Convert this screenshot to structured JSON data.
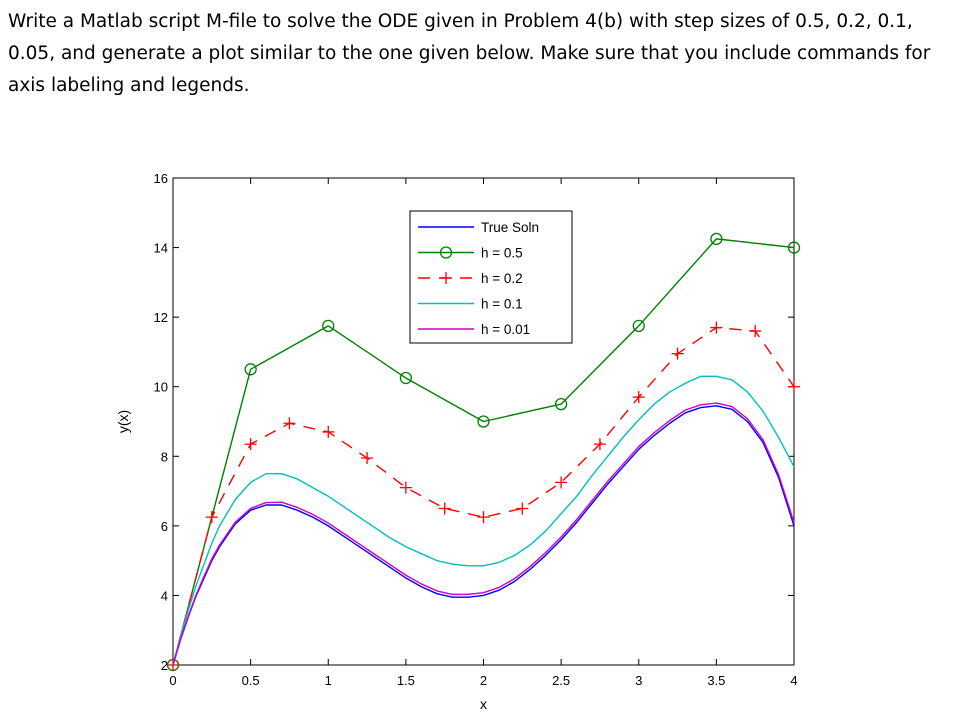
{
  "prompt": {
    "text": "Write a Matlab script M-file to solve the ODE given in Problem 4(b) with step sizes of 0.5, 0.2, 0.1, 0.05, and generate a plot similar to the one given below. Make sure that you include commands for axis labeling and legends."
  },
  "chart_data": {
    "type": "line",
    "xlabel": "x",
    "ylabel": "y(x)",
    "xlim": [
      0,
      4
    ],
    "ylim": [
      2,
      16
    ],
    "xticks": [
      0,
      0.5,
      1,
      1.5,
      2,
      2.5,
      3,
      3.5,
      4
    ],
    "xtick_labels": [
      "0",
      "0.5",
      "1",
      "1.5",
      "2",
      "2.5",
      "3",
      "3.5",
      "4"
    ],
    "yticks": [
      2,
      4,
      6,
      8,
      10,
      12,
      14,
      16
    ],
    "ytick_labels": [
      "2",
      "4",
      "6",
      "8",
      "10",
      "12",
      "14",
      "16"
    ],
    "grid": false,
    "legend_position": "top-center",
    "series": [
      {
        "name": "True Soln",
        "color": "#0000ff",
        "style": "solid",
        "marker": "none",
        "x": [
          0,
          0.05,
          0.1,
          0.15,
          0.2,
          0.25,
          0.3,
          0.4,
          0.5,
          0.6,
          0.7,
          0.8,
          0.9,
          1.0,
          1.1,
          1.2,
          1.3,
          1.4,
          1.5,
          1.6,
          1.7,
          1.8,
          1.9,
          2.0,
          2.1,
          2.2,
          2.3,
          2.4,
          2.5,
          2.6,
          2.7,
          2.8,
          2.9,
          3.0,
          3.1,
          3.2,
          3.3,
          3.4,
          3.5,
          3.6,
          3.7,
          3.8,
          3.9,
          4.0
        ],
        "y": [
          2.0,
          2.75,
          3.4,
          4.0,
          4.5,
          5.0,
          5.4,
          6.05,
          6.45,
          6.6,
          6.6,
          6.45,
          6.25,
          6.0,
          5.7,
          5.4,
          5.1,
          4.8,
          4.5,
          4.25,
          4.05,
          3.95,
          3.95,
          4.0,
          4.15,
          4.4,
          4.75,
          5.15,
          5.6,
          6.1,
          6.65,
          7.2,
          7.7,
          8.2,
          8.6,
          8.95,
          9.25,
          9.4,
          9.45,
          9.35,
          9.0,
          8.4,
          7.4,
          6.0
        ]
      },
      {
        "name": "h = 0.5",
        "color": "#008000",
        "style": "solid",
        "marker": "circle",
        "x": [
          0,
          0.5,
          1.0,
          1.5,
          2.0,
          2.5,
          3.0,
          3.5,
          4.0
        ],
        "y": [
          2.0,
          10.5,
          11.75,
          10.25,
          9.0,
          9.5,
          11.75,
          14.25,
          14.0
        ]
      },
      {
        "name": "h = 0.2",
        "color": "#ff0000",
        "style": "dashed",
        "marker": "plus",
        "x": [
          0,
          0.25,
          0.5,
          0.75,
          1.0,
          1.25,
          1.5,
          1.75,
          2.0,
          2.25,
          2.5,
          2.75,
          3.0,
          3.25,
          3.5,
          3.75,
          4.0
        ],
        "y": [
          2.0,
          6.25,
          8.35,
          8.95,
          8.7,
          7.95,
          7.1,
          6.5,
          6.25,
          6.5,
          7.25,
          8.35,
          9.7,
          10.95,
          11.7,
          11.6,
          10.0
        ]
      },
      {
        "name": "h = 0.1",
        "color": "#00bfbf",
        "style": "solid",
        "marker": "none",
        "x": [
          0,
          0.05,
          0.1,
          0.15,
          0.2,
          0.25,
          0.3,
          0.4,
          0.5,
          0.6,
          0.7,
          0.8,
          0.9,
          1.0,
          1.1,
          1.2,
          1.3,
          1.4,
          1.5,
          1.6,
          1.7,
          1.8,
          1.9,
          2.0,
          2.1,
          2.2,
          2.3,
          2.4,
          2.5,
          2.6,
          2.7,
          2.8,
          2.9,
          3.0,
          3.1,
          3.2,
          3.3,
          3.4,
          3.5,
          3.6,
          3.7,
          3.8,
          3.9,
          4.0
        ],
        "y": [
          2.0,
          2.85,
          3.6,
          4.3,
          4.9,
          5.5,
          6.0,
          6.75,
          7.25,
          7.5,
          7.5,
          7.35,
          7.1,
          6.85,
          6.55,
          6.25,
          5.95,
          5.65,
          5.4,
          5.2,
          5.0,
          4.9,
          4.85,
          4.85,
          4.95,
          5.15,
          5.45,
          5.85,
          6.35,
          6.85,
          7.45,
          8.0,
          8.55,
          9.05,
          9.5,
          9.85,
          10.1,
          10.3,
          10.3,
          10.2,
          9.85,
          9.3,
          8.55,
          7.7
        ]
      },
      {
        "name": "h = 0.01",
        "color": "#cc00cc",
        "style": "solid",
        "marker": "none",
        "x": [
          0,
          0.05,
          0.1,
          0.15,
          0.2,
          0.25,
          0.3,
          0.4,
          0.5,
          0.6,
          0.7,
          0.8,
          0.9,
          1.0,
          1.1,
          1.2,
          1.3,
          1.4,
          1.5,
          1.6,
          1.7,
          1.8,
          1.9,
          2.0,
          2.1,
          2.2,
          2.3,
          2.4,
          2.5,
          2.6,
          2.7,
          2.8,
          2.9,
          3.0,
          3.1,
          3.2,
          3.3,
          3.4,
          3.5,
          3.6,
          3.7,
          3.8,
          3.9,
          4.0
        ],
        "y": [
          2.0,
          2.77,
          3.43,
          4.03,
          4.55,
          5.05,
          5.45,
          6.1,
          6.5,
          6.67,
          6.68,
          6.53,
          6.33,
          6.08,
          5.78,
          5.48,
          5.18,
          4.88,
          4.58,
          4.33,
          4.13,
          4.03,
          4.03,
          4.08,
          4.23,
          4.48,
          4.83,
          5.23,
          5.68,
          6.18,
          6.73,
          7.28,
          7.78,
          8.28,
          8.68,
          9.03,
          9.33,
          9.48,
          9.53,
          9.43,
          9.08,
          8.48,
          7.48,
          6.1
        ]
      }
    ]
  }
}
